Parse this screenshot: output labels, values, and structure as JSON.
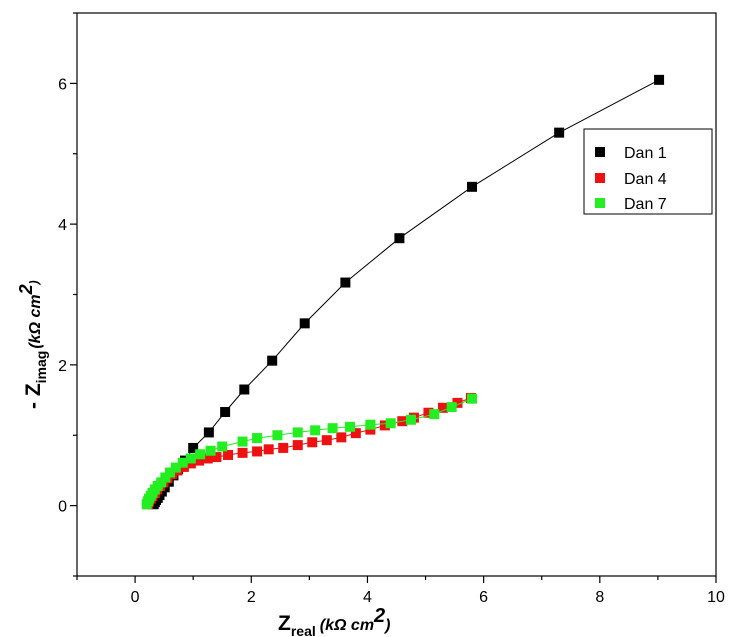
{
  "chart_data": {
    "type": "scatter",
    "title": "",
    "xlabel": {
      "main": "Z",
      "subscript": "real",
      "unit": "(kΩ cm",
      "unit_power": "2",
      "unit_close": ")"
    },
    "ylabel": {
      "prefix": "- Z",
      "subscript": "imag",
      "unit": "(kΩ cm",
      "unit_power": "2",
      "unit_close": ")"
    },
    "xlim": [
      -1,
      10
    ],
    "ylim": [
      -1,
      7
    ],
    "x_ticks": [
      0,
      2,
      4,
      6,
      8,
      10
    ],
    "y_ticks": [
      0,
      2,
      4,
      6
    ],
    "grid": false,
    "legend": {
      "placement": "top-right",
      "entries": [
        "Dan 1",
        "Dan 4",
        "Dan 7"
      ]
    },
    "series": [
      {
        "name": "Dan 1",
        "color": "#000000",
        "marker": "square",
        "line": true,
        "points": [
          [
            0.32,
            0.02
          ],
          [
            0.34,
            0.05
          ],
          [
            0.36,
            0.08
          ],
          [
            0.39,
            0.11
          ],
          [
            0.42,
            0.15
          ],
          [
            0.46,
            0.2
          ],
          [
            0.51,
            0.26
          ],
          [
            0.58,
            0.34
          ],
          [
            0.66,
            0.43
          ],
          [
            0.74,
            0.52
          ],
          [
            0.86,
            0.64
          ],
          [
            1.0,
            0.82
          ],
          [
            1.27,
            1.04
          ],
          [
            1.55,
            1.33
          ],
          [
            1.88,
            1.65
          ],
          [
            2.36,
            2.06
          ],
          [
            2.92,
            2.59
          ],
          [
            3.62,
            3.17
          ],
          [
            4.55,
            3.8
          ],
          [
            5.8,
            4.53
          ],
          [
            7.3,
            5.3
          ],
          [
            9.02,
            6.05
          ]
        ]
      },
      {
        "name": "Dan 4",
        "color": "#ee1111",
        "marker": "square",
        "line": true,
        "points": [
          [
            0.22,
            0.02
          ],
          [
            0.24,
            0.06
          ],
          [
            0.27,
            0.1
          ],
          [
            0.3,
            0.14
          ],
          [
            0.34,
            0.18
          ],
          [
            0.38,
            0.23
          ],
          [
            0.43,
            0.28
          ],
          [
            0.49,
            0.33
          ],
          [
            0.56,
            0.39
          ],
          [
            0.64,
            0.45
          ],
          [
            0.73,
            0.5
          ],
          [
            0.84,
            0.55
          ],
          [
            0.96,
            0.6
          ],
          [
            1.1,
            0.64
          ],
          [
            1.25,
            0.67
          ],
          [
            1.4,
            0.69
          ],
          [
            1.6,
            0.72
          ],
          [
            1.85,
            0.75
          ],
          [
            2.1,
            0.77
          ],
          [
            2.3,
            0.8
          ],
          [
            2.55,
            0.82
          ],
          [
            2.8,
            0.86
          ],
          [
            3.05,
            0.9
          ],
          [
            3.3,
            0.93
          ],
          [
            3.55,
            0.97
          ],
          [
            3.8,
            1.03
          ],
          [
            4.05,
            1.08
          ],
          [
            4.3,
            1.14
          ],
          [
            4.6,
            1.2
          ],
          [
            4.8,
            1.25
          ],
          [
            5.05,
            1.32
          ],
          [
            5.3,
            1.39
          ],
          [
            5.55,
            1.46
          ],
          [
            5.78,
            1.53
          ]
        ]
      },
      {
        "name": "Dan 7",
        "color": "#22ee22",
        "marker": "square",
        "line": true,
        "points": [
          [
            0.2,
            0.02
          ],
          [
            0.22,
            0.06
          ],
          [
            0.24,
            0.1
          ],
          [
            0.27,
            0.14
          ],
          [
            0.3,
            0.18
          ],
          [
            0.34,
            0.23
          ],
          [
            0.39,
            0.28
          ],
          [
            0.45,
            0.33
          ],
          [
            0.52,
            0.4
          ],
          [
            0.6,
            0.47
          ],
          [
            0.7,
            0.54
          ],
          [
            0.82,
            0.61
          ],
          [
            0.96,
            0.67
          ],
          [
            1.12,
            0.73
          ],
          [
            1.3,
            0.78
          ],
          [
            1.5,
            0.84
          ],
          [
            1.85,
            0.91
          ],
          [
            2.1,
            0.96
          ],
          [
            2.45,
            1.0
          ],
          [
            2.8,
            1.04
          ],
          [
            3.1,
            1.07
          ],
          [
            3.4,
            1.1
          ],
          [
            3.7,
            1.12
          ],
          [
            4.05,
            1.15
          ],
          [
            4.4,
            1.17
          ],
          [
            4.75,
            1.22
          ],
          [
            5.15,
            1.3
          ],
          [
            5.45,
            1.4
          ],
          [
            5.8,
            1.52
          ]
        ]
      }
    ]
  }
}
